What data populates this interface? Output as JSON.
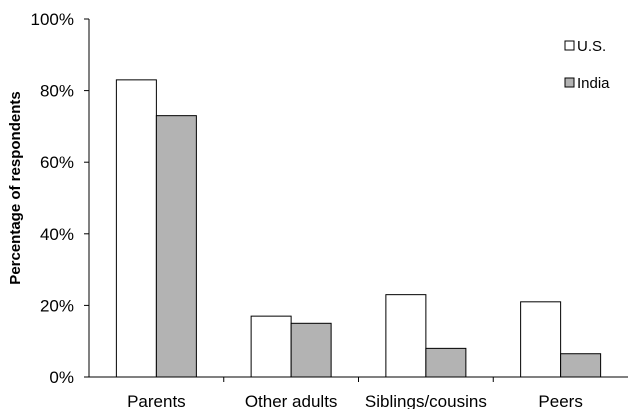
{
  "chart_data": {
    "type": "bar",
    "title": "",
    "xlabel": "",
    "ylabel": "Percentage of respondents",
    "categories": [
      "Parents",
      "Other adults",
      "Siblings/cousins",
      "Peers"
    ],
    "series": [
      {
        "name": "U.S.",
        "values": [
          83,
          17,
          23,
          21
        ],
        "color": "#ffffff"
      },
      {
        "name": "India",
        "values": [
          73,
          15,
          8,
          6.5
        ],
        "color": "#b3b3b3"
      }
    ],
    "ylim": [
      0,
      100
    ],
    "yticks": [
      {
        "value": 0,
        "label": "0%"
      },
      {
        "value": 20,
        "label": "20%"
      },
      {
        "value": 40,
        "label": "40%"
      },
      {
        "value": 60,
        "label": "60%"
      },
      {
        "value": 80,
        "label": "80%"
      },
      {
        "value": 100,
        "label": "100%"
      }
    ],
    "grid": false,
    "legend_position": "top-right"
  }
}
